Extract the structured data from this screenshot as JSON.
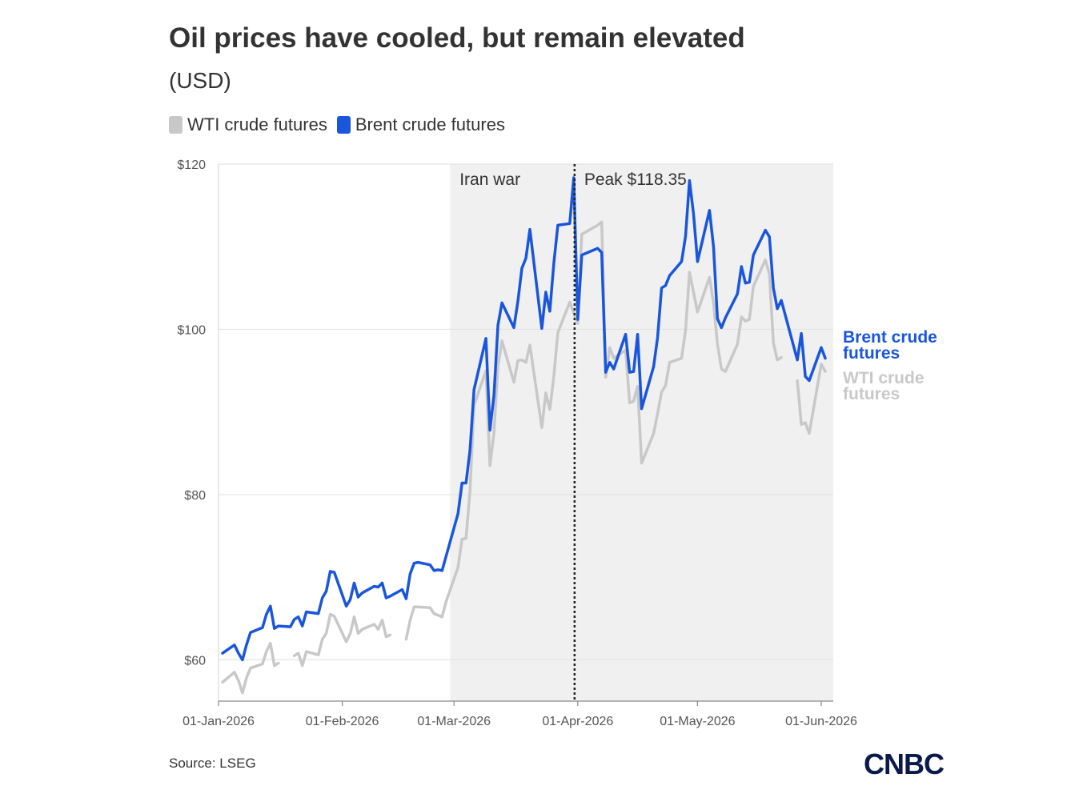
{
  "header": {
    "title": "Oil prices have cooled, but remain elevated",
    "subtitle": "(USD)"
  },
  "legend": {
    "items": [
      {
        "label": "WTI crude futures",
        "color": "#c8c8c8"
      },
      {
        "label": "Brent crude futures",
        "color": "#1a56db"
      }
    ]
  },
  "footer": {
    "source": "Source: LSEG",
    "logo": "CNBC"
  },
  "colors": {
    "brent": "#1a56db",
    "wti": "#c8c8c8",
    "shade": "#f0f0f0",
    "grid": "#e4e4e4"
  },
  "chart_data": {
    "type": "line",
    "title": "Oil prices have cooled, but remain elevated",
    "subtitle": "(USD)",
    "ylim": [
      55,
      120
    ],
    "yticks": [
      60,
      80,
      100,
      120
    ],
    "ytick_labels": [
      "$60",
      "$80",
      "$100",
      "$120"
    ],
    "xlim": [
      "2026-01-01",
      "2026-06-01"
    ],
    "xticks": [
      "2026-01-01",
      "2026-02-01",
      "2026-03-01",
      "2026-04-01",
      "2026-05-01",
      "2026-06-01"
    ],
    "xtick_labels": [
      "01-Jan-2026",
      "01-Feb-2026",
      "01-Mar-2026",
      "01-Apr-2026",
      "01-May-2026",
      "01-Jun-2026"
    ],
    "grid": "horizontal",
    "legend_position": "top-left",
    "shaded_region": {
      "label": "Iran war",
      "start": "2026-02-28",
      "end": "2026-06-01"
    },
    "vline": {
      "date": "2026-03-31",
      "label": "Peak $118.35",
      "value": 118.35
    },
    "series": [
      {
        "name": "WTI crude futures",
        "end_label": "WTI crude futures",
        "color": "#c8c8c8",
        "segments": [
          [
            [
              "2026-01-02",
              57.3
            ],
            [
              "2026-01-05",
              58.5
            ],
            [
              "2026-01-06",
              57.5
            ],
            [
              "2026-01-07",
              56.0
            ],
            [
              "2026-01-08",
              57.8
            ],
            [
              "2026-01-09",
              59.0
            ],
            [
              "2026-01-12",
              59.5
            ],
            [
              "2026-01-13",
              61.0
            ],
            [
              "2026-01-14",
              62.0
            ],
            [
              "2026-01-15",
              59.3
            ],
            [
              "2026-01-16",
              59.6
            ]
          ],
          [
            [
              "2026-01-20",
              60.5
            ],
            [
              "2026-01-21",
              60.8
            ],
            [
              "2026-01-22",
              59.3
            ],
            [
              "2026-01-23",
              61.0
            ],
            [
              "2026-01-26",
              60.6
            ],
            [
              "2026-01-27",
              62.5
            ],
            [
              "2026-01-28",
              63.2
            ],
            [
              "2026-01-29",
              65.5
            ],
            [
              "2026-01-30",
              65.3
            ],
            [
              "2026-02-02",
              62.2
            ],
            [
              "2026-02-03",
              63.2
            ],
            [
              "2026-02-04",
              65.2
            ],
            [
              "2026-02-05",
              63.2
            ],
            [
              "2026-02-06",
              63.7
            ],
            [
              "2026-02-09",
              64.3
            ],
            [
              "2026-02-10",
              63.7
            ],
            [
              "2026-02-11",
              64.8
            ],
            [
              "2026-02-12",
              62.8
            ],
            [
              "2026-02-13",
              63.0
            ]
          ],
          [
            [
              "2026-02-17",
              62.5
            ],
            [
              "2026-02-18",
              64.8
            ],
            [
              "2026-02-19",
              66.4
            ],
            [
              "2026-02-20",
              66.4
            ],
            [
              "2026-02-23",
              66.3
            ],
            [
              "2026-02-24",
              65.6
            ],
            [
              "2026-02-25",
              65.4
            ],
            [
              "2026-02-26",
              65.2
            ],
            [
              "2026-02-27",
              67.0
            ],
            [
              "2026-03-02",
              71.2
            ],
            [
              "2026-03-03",
              74.6
            ],
            [
              "2026-03-04",
              74.7
            ],
            [
              "2026-03-05",
              80.5
            ],
            [
              "2026-03-06",
              90.8
            ],
            [
              "2026-03-09",
              95.0
            ],
            [
              "2026-03-10",
              83.5
            ],
            [
              "2026-03-11",
              87.5
            ],
            [
              "2026-03-12",
              95.5
            ],
            [
              "2026-03-13",
              98.6
            ],
            [
              "2026-03-16",
              93.6
            ],
            [
              "2026-03-17",
              96.2
            ],
            [
              "2026-03-18",
              96.3
            ],
            [
              "2026-03-19",
              96.0
            ],
            [
              "2026-03-20",
              98.1
            ],
            [
              "2026-03-23",
              88.1
            ],
            [
              "2026-03-24",
              92.3
            ],
            [
              "2026-03-25",
              90.3
            ],
            [
              "2026-03-26",
              94.3
            ],
            [
              "2026-03-27",
              99.6
            ],
            [
              "2026-03-30",
              103.3
            ],
            [
              "2026-03-31",
              102.0
            ],
            [
              "2026-04-01",
              100.7
            ],
            [
              "2026-04-02",
              111.5
            ],
            [
              "2026-04-06",
              112.6
            ],
            [
              "2026-04-07",
              113.0
            ],
            [
              "2026-04-08",
              94.2
            ],
            [
              "2026-04-09",
              97.8
            ],
            [
              "2026-04-10",
              96.5
            ],
            [
              "2026-04-13",
              97.5
            ],
            [
              "2026-04-14",
              91.1
            ],
            [
              "2026-04-15",
              91.3
            ],
            [
              "2026-04-16",
              93.1
            ],
            [
              "2026-04-17",
              83.8
            ],
            [
              "2026-04-20",
              87.4
            ],
            [
              "2026-04-21",
              89.8
            ],
            [
              "2026-04-22",
              92.4
            ],
            [
              "2026-04-23",
              93.2
            ],
            [
              "2026-04-24",
              96.0
            ],
            [
              "2026-04-27",
              96.5
            ],
            [
              "2026-04-28",
              99.9
            ],
            [
              "2026-04-29",
              106.9
            ],
            [
              "2026-04-30",
              104.5
            ],
            [
              "2026-05-01",
              102.1
            ],
            [
              "2026-05-04",
              106.3
            ],
            [
              "2026-05-05",
              103.2
            ],
            [
              "2026-05-06",
              98.2
            ],
            [
              "2026-05-07",
              95.2
            ],
            [
              "2026-05-08",
              94.9
            ],
            [
              "2026-05-11",
              98.2
            ],
            [
              "2026-05-12",
              101.5
            ],
            [
              "2026-05-13",
              101.0
            ],
            [
              "2026-05-14",
              101.2
            ],
            [
              "2026-05-15",
              105.2
            ],
            [
              "2026-05-18",
              108.4
            ],
            [
              "2026-05-19",
              106.7
            ],
            [
              "2026-05-20",
              98.4
            ],
            [
              "2026-05-21",
              96.3
            ],
            [
              "2026-05-22",
              96.6
            ]
          ],
          [
            [
              "2026-05-26",
              93.8
            ],
            [
              "2026-05-27",
              88.5
            ],
            [
              "2026-05-28",
              88.7
            ],
            [
              "2026-05-29",
              87.4
            ],
            [
              "2026-06-01",
              95.8
            ],
            [
              "2026-06-02",
              94.9
            ]
          ]
        ]
      },
      {
        "name": "Brent crude futures",
        "end_label": "Brent crude futures",
        "color": "#1a56db",
        "segments": [
          [
            [
              "2026-01-02",
              60.8
            ],
            [
              "2026-01-05",
              61.8
            ],
            [
              "2026-01-06",
              60.8
            ],
            [
              "2026-01-07",
              60.0
            ],
            [
              "2026-01-08",
              61.8
            ],
            [
              "2026-01-09",
              63.3
            ],
            [
              "2026-01-12",
              63.9
            ],
            [
              "2026-01-13",
              65.5
            ],
            [
              "2026-01-14",
              66.5
            ],
            [
              "2026-01-15",
              63.8
            ],
            [
              "2026-01-16",
              64.1
            ],
            [
              "2026-01-19",
              64.0
            ],
            [
              "2026-01-20",
              64.9
            ],
            [
              "2026-01-21",
              65.2
            ],
            [
              "2026-01-22",
              64.1
            ],
            [
              "2026-01-23",
              65.8
            ],
            [
              "2026-01-26",
              65.6
            ],
            [
              "2026-01-27",
              67.5
            ],
            [
              "2026-01-28",
              68.3
            ],
            [
              "2026-01-29",
              70.7
            ],
            [
              "2026-01-30",
              70.6
            ],
            [
              "2026-02-02",
              66.5
            ],
            [
              "2026-02-03",
              67.3
            ],
            [
              "2026-02-04",
              69.3
            ],
            [
              "2026-02-05",
              67.6
            ],
            [
              "2026-02-06",
              68.1
            ],
            [
              "2026-02-09",
              68.9
            ],
            [
              "2026-02-10",
              68.8
            ],
            [
              "2026-02-11",
              69.3
            ],
            [
              "2026-02-12",
              67.5
            ],
            [
              "2026-02-13",
              67.7
            ],
            [
              "2026-02-16",
              68.5
            ],
            [
              "2026-02-17",
              67.4
            ],
            [
              "2026-02-18",
              70.4
            ],
            [
              "2026-02-19",
              71.7
            ],
            [
              "2026-02-20",
              71.8
            ],
            [
              "2026-02-23",
              71.5
            ],
            [
              "2026-02-24",
              70.8
            ],
            [
              "2026-02-25",
              70.9
            ],
            [
              "2026-02-26",
              70.8
            ],
            [
              "2026-02-27",
              72.5
            ],
            [
              "2026-03-02",
              77.7
            ],
            [
              "2026-03-03",
              81.4
            ],
            [
              "2026-03-04",
              81.4
            ],
            [
              "2026-03-05",
              85.4
            ],
            [
              "2026-03-06",
              92.7
            ],
            [
              "2026-03-09",
              98.9
            ],
            [
              "2026-03-10",
              87.8
            ],
            [
              "2026-03-11",
              92.0
            ],
            [
              "2026-03-12",
              100.5
            ],
            [
              "2026-03-13",
              103.2
            ],
            [
              "2026-03-16",
              100.2
            ],
            [
              "2026-03-17",
              103.4
            ],
            [
              "2026-03-18",
              107.4
            ],
            [
              "2026-03-19",
              108.6
            ],
            [
              "2026-03-20",
              112.1
            ],
            [
              "2026-03-23",
              100.1
            ],
            [
              "2026-03-24",
              104.5
            ],
            [
              "2026-03-25",
              102.2
            ],
            [
              "2026-03-26",
              108.0
            ],
            [
              "2026-03-27",
              112.6
            ],
            [
              "2026-03-30",
              112.8
            ],
            [
              "2026-03-31",
              118.35
            ],
            [
              "2026-04-01",
              101.2
            ],
            [
              "2026-04-02",
              109.0
            ],
            [
              "2026-04-06",
              109.8
            ],
            [
              "2026-04-07",
              109.3
            ],
            [
              "2026-04-08",
              94.8
            ],
            [
              "2026-04-09",
              96.0
            ],
            [
              "2026-04-10",
              95.2
            ],
            [
              "2026-04-13",
              99.4
            ],
            [
              "2026-04-14",
              94.8
            ],
            [
              "2026-04-15",
              94.9
            ],
            [
              "2026-04-16",
              99.4
            ],
            [
              "2026-04-17",
              90.4
            ],
            [
              "2026-04-20",
              95.5
            ],
            [
              "2026-04-21",
              99.0
            ],
            [
              "2026-04-22",
              105.0
            ],
            [
              "2026-04-23",
              105.3
            ],
            [
              "2026-04-24",
              106.5
            ],
            [
              "2026-04-27",
              108.2
            ],
            [
              "2026-04-28",
              111.3
            ],
            [
              "2026-04-29",
              118.0
            ],
            [
              "2026-04-30",
              114.0
            ],
            [
              "2026-05-01",
              108.2
            ],
            [
              "2026-05-04",
              114.4
            ],
            [
              "2026-05-05",
              110.0
            ],
            [
              "2026-05-06",
              101.3
            ],
            [
              "2026-05-07",
              100.2
            ],
            [
              "2026-05-08",
              101.4
            ],
            [
              "2026-05-11",
              104.3
            ],
            [
              "2026-05-12",
              107.6
            ],
            [
              "2026-05-13",
              105.6
            ],
            [
              "2026-05-14",
              105.7
            ],
            [
              "2026-05-15",
              109.0
            ],
            [
              "2026-05-18",
              112.0
            ],
            [
              "2026-05-19",
              111.2
            ],
            [
              "2026-05-20",
              105.0
            ],
            [
              "2026-05-21",
              102.5
            ],
            [
              "2026-05-22",
              103.5
            ],
            [
              "2026-05-26",
              96.3
            ],
            [
              "2026-05-27",
              99.5
            ],
            [
              "2026-05-28",
              94.3
            ],
            [
              "2026-05-29",
              93.8
            ],
            [
              "2026-06-01",
              97.8
            ],
            [
              "2026-06-02",
              96.5
            ]
          ]
        ]
      }
    ]
  }
}
